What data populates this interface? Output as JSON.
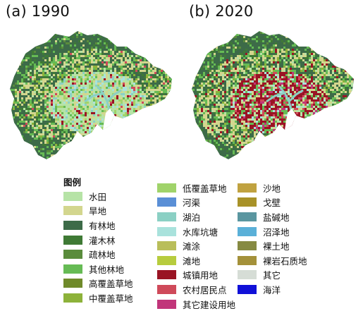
{
  "panels": [
    {
      "title": "(a) 1990"
    },
    {
      "title": "(b) 2020"
    }
  ],
  "legend": {
    "heading": "图例",
    "columns": [
      [
        {
          "label": "水田",
          "color": "#b6e3a6"
        },
        {
          "label": "旱地",
          "color": "#d3d68e"
        },
        {
          "label": "有林地",
          "color": "#3d6b48"
        },
        {
          "label": "灌木林",
          "color": "#3f7a35"
        },
        {
          "label": "疏林地",
          "color": "#5a8c3c"
        },
        {
          "label": "其他林地",
          "color": "#66bb55"
        },
        {
          "label": "高覆盖草地",
          "color": "#6f8a2a"
        },
        {
          "label": "中覆盖草地",
          "color": "#8db23a"
        }
      ],
      [
        {
          "label": "低覆盖草地",
          "color": "#a0d36a"
        },
        {
          "label": "河渠",
          "color": "#5a8fd6"
        },
        {
          "label": "湖泊",
          "color": "#8bd0c4"
        },
        {
          "label": "水库坑塘",
          "color": "#a9e2dc"
        },
        {
          "label": "滩涂",
          "color": "#b9be5a"
        },
        {
          "label": "滩地",
          "color": "#b7cc3e"
        },
        {
          "label": "城镇用地",
          "color": "#9a1424"
        },
        {
          "label": "农村居民点",
          "color": "#cf4a5a"
        },
        {
          "label": "其它建设用地",
          "color": "#c1357a"
        }
      ],
      [
        {
          "label": "沙地",
          "color": "#c0a240"
        },
        {
          "label": "戈壁",
          "color": "#a89228"
        },
        {
          "label": "盐碱地",
          "color": "#5a96a0"
        },
        {
          "label": "沼泽地",
          "color": "#5ab0d8"
        },
        {
          "label": "裸土地",
          "color": "#868a42"
        },
        {
          "label": "裸岩石质地",
          "color": "#a4913a"
        },
        {
          "label": "其它",
          "color": "#d6ddd6"
        },
        {
          "label": "海洋",
          "color": "#1010d8"
        }
      ]
    ]
  }
}
